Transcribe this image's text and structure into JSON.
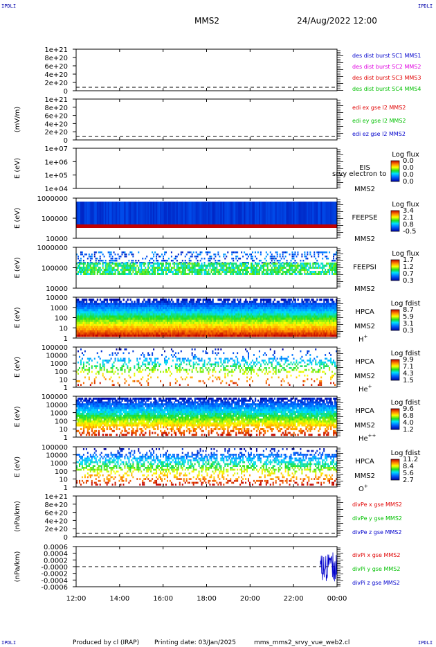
{
  "header": {
    "spacecraft": "MMS2",
    "date": "24/Aug/2022 12:00"
  },
  "corners": {
    "tl": "IPDLI",
    "tr": "IPDLI",
    "bl": "IPDLI",
    "br": "IPDLI"
  },
  "footer": {
    "producer": "Produced by cl (IRAP)",
    "printing": "Printing date: 03/Jan/2025",
    "file": "mms_mms2_srvy_vue_web2.cl"
  },
  "colors": {
    "red": "#e00000",
    "green": "#00c000",
    "blue": "#0000cc",
    "magenta": "#e000e0"
  },
  "chart_data": [
    {
      "type": "line",
      "title": "",
      "ylabel": "",
      "ylim": [
        0,
        1e+21
      ],
      "yticks": [
        "1e+21",
        "8e+20",
        "6e+20",
        "4e+20",
        "2e+20",
        "0"
      ],
      "xlim": [
        "12:00",
        "00:00"
      ],
      "series": [
        {
          "name": "des dist burst SC1 MMS1",
          "color": "#0000cc"
        },
        {
          "name": "des dist burst SC2 MMS2",
          "color": "#e000e0"
        },
        {
          "name": "des dist burst SC3 MMS3",
          "color": "#e00000"
        },
        {
          "name": "des dist burst SC4 MMS4",
          "color": "#00c000"
        }
      ]
    },
    {
      "type": "line",
      "title": "",
      "ylabel": "(mV/m)",
      "ylim": [
        0,
        1e+21
      ],
      "yticks": [
        "1e+21",
        "8e+20",
        "6e+20",
        "4e+20",
        "2e+20",
        "0"
      ],
      "series": [
        {
          "name": "edi ex gse l2 MMS2",
          "color": "#e00000"
        },
        {
          "name": "edi ey gse l2 MMS2",
          "color": "#00c000"
        },
        {
          "name": "edi ez gse l2 MMS2",
          "color": "#0000cc"
        }
      ]
    },
    {
      "type": "heatmap",
      "ylabel": "E (eV)",
      "yticks": [
        "1e+07",
        "1e+06",
        "1e+05",
        "1e+04"
      ],
      "labels": [
        "EIS",
        "MMS2"
      ],
      "overlay": "srvy electron to",
      "colorbar": {
        "title": "Log flux",
        "ticks": [
          "0.0",
          "0.0",
          "0.0",
          "0.0"
        ]
      }
    },
    {
      "type": "heatmap",
      "ylabel": "E (eV)",
      "yticks": [
        "1000000",
        "100000",
        "10000"
      ],
      "labels": [
        "FEEPSE",
        "MMS2"
      ],
      "colorbar": {
        "title": "Log flux",
        "ticks": [
          "3.4",
          "2.1",
          "0.8",
          "-0.5"
        ]
      }
    },
    {
      "type": "heatmap",
      "ylabel": "E (eV)",
      "yticks": [
        "1000000",
        "100000",
        "10000"
      ],
      "labels": [
        "FEEPSI",
        "MMS2"
      ],
      "colorbar": {
        "title": "Log flux",
        "ticks": [
          "1.7",
          "1.2",
          "0.7",
          "0.3"
        ]
      }
    },
    {
      "type": "heatmap",
      "ylabel": "E (eV)",
      "yticks": [
        "10000",
        "1000",
        "100",
        "10",
        "1"
      ],
      "labels": [
        "HPCA",
        "MMS2"
      ],
      "species": "H",
      "species_sup": "+",
      "colorbar": {
        "title": "Log fdist",
        "ticks": [
          "8.7",
          "5.9",
          "3.1",
          "0.3"
        ]
      }
    },
    {
      "type": "heatmap",
      "ylabel": "E (eV)",
      "yticks": [
        "100000",
        "10000",
        "1000",
        "100",
        "10",
        "1"
      ],
      "labels": [
        "HPCA",
        "MMS2"
      ],
      "species": "He",
      "species_sup": "+",
      "colorbar": {
        "title": "Log fdist",
        "ticks": [
          "9.9",
          "7.1",
          "4.3",
          "1.5"
        ]
      }
    },
    {
      "type": "heatmap",
      "ylabel": "E (eV)",
      "yticks": [
        "100000",
        "10000",
        "1000",
        "100",
        "10",
        "1"
      ],
      "labels": [
        "HPCA",
        "MMS2"
      ],
      "species": "He",
      "species_sup": "++",
      "colorbar": {
        "title": "Log fdist",
        "ticks": [
          "9.6",
          "6.8",
          "4.0",
          "1.2"
        ]
      }
    },
    {
      "type": "heatmap",
      "ylabel": "E (eV)",
      "yticks": [
        "100000",
        "10000",
        "1000",
        "100",
        "10",
        "1"
      ],
      "labels": [
        "HPCA",
        "MMS2"
      ],
      "species": "O",
      "species_sup": "+",
      "colorbar": {
        "title": "Log fdist",
        "ticks": [
          "11.2",
          "8.4",
          "5.6",
          "2.7"
        ]
      }
    },
    {
      "type": "line",
      "ylabel": "(nPa/km)",
      "ylim": [
        0,
        1e+21
      ],
      "yticks": [
        "1e+21",
        "8e+20",
        "6e+20",
        "4e+20",
        "2e+20",
        "0"
      ],
      "series": [
        {
          "name": "divPe x gse MMS2",
          "color": "#e00000"
        },
        {
          "name": "divPe y gse MMS2",
          "color": "#00c000"
        },
        {
          "name": "divPe z gse MMS2",
          "color": "#0000cc"
        }
      ]
    },
    {
      "type": "line",
      "ylabel": "(nPa/km)",
      "ylim": [
        -0.0006,
        0.0006
      ],
      "yticks": [
        "0.0006",
        "0.0004",
        "0.0002",
        "-0.0000",
        "-0.0002",
        "-0.0004",
        "-0.0006"
      ],
      "series": [
        {
          "name": "divPi x gse MMS2",
          "color": "#e00000"
        },
        {
          "name": "divPi y gse MMS2",
          "color": "#00c000"
        },
        {
          "name": "divPi z gse MMS2",
          "color": "#0000cc"
        }
      ]
    }
  ],
  "xaxis": {
    "ticks": [
      "12:00",
      "14:00",
      "16:00",
      "18:00",
      "20:00",
      "22:00",
      "00:00"
    ]
  }
}
